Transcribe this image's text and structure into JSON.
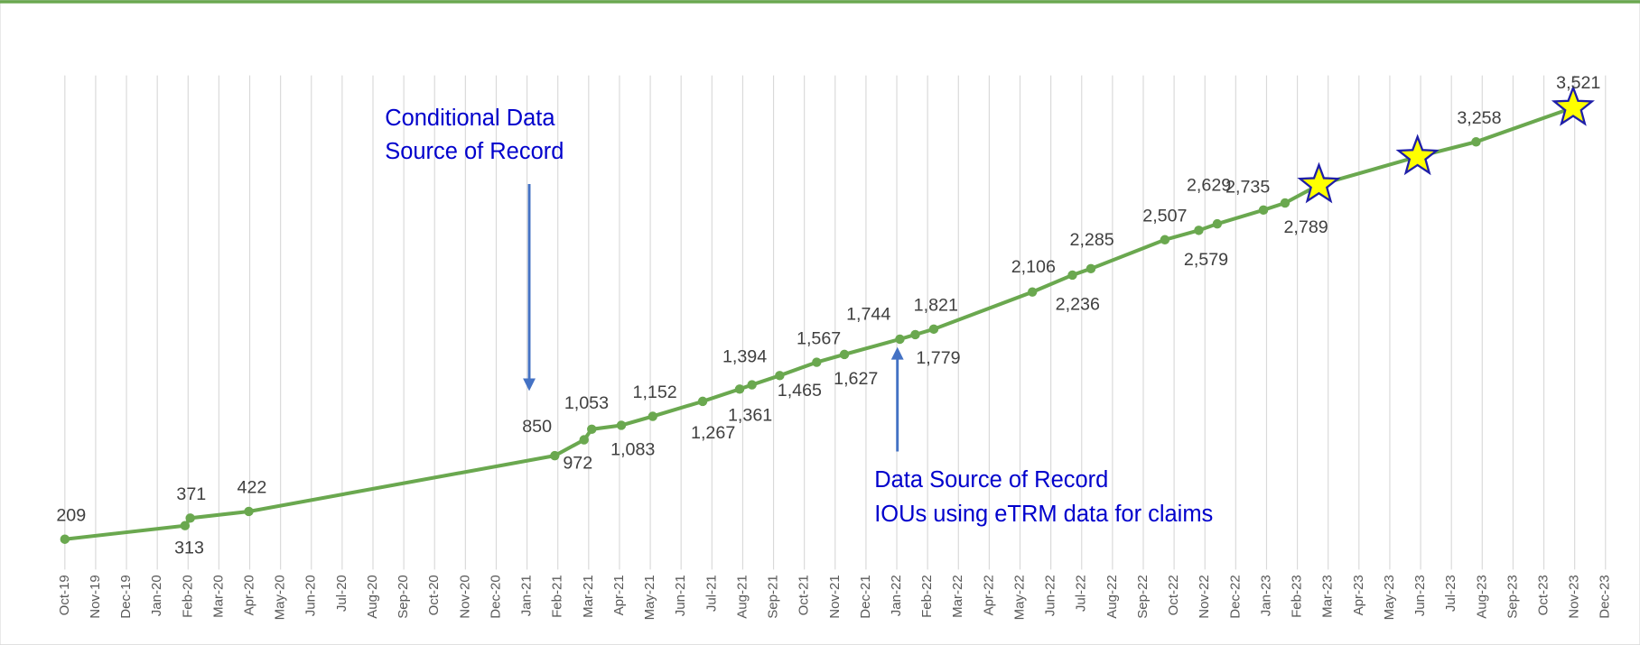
{
  "chart_data": {
    "type": "line",
    "xlim": [
      0,
      50
    ],
    "xticks": [
      {
        "value": 0,
        "label": "Oct-19"
      },
      {
        "value": 1,
        "label": "Nov-19"
      },
      {
        "value": 2,
        "label": "Dec-19"
      },
      {
        "value": 3,
        "label": "Jan-20"
      },
      {
        "value": 4,
        "label": "Feb-20"
      },
      {
        "value": 5,
        "label": "Mar-20"
      },
      {
        "value": 6,
        "label": "Apr-20"
      },
      {
        "value": 7,
        "label": "May-20"
      },
      {
        "value": 8,
        "label": "Jun-20"
      },
      {
        "value": 9,
        "label": "Jul-20"
      },
      {
        "value": 10,
        "label": "Aug-20"
      },
      {
        "value": 11,
        "label": "Sep-20"
      },
      {
        "value": 12,
        "label": "Oct-20"
      },
      {
        "value": 13,
        "label": "Nov-20"
      },
      {
        "value": 14,
        "label": "Dec-20"
      },
      {
        "value": 15,
        "label": "Jan-21"
      },
      {
        "value": 16,
        "label": "Feb-21"
      },
      {
        "value": 17,
        "label": "Mar-21"
      },
      {
        "value": 18,
        "label": "Apr-21"
      },
      {
        "value": 19,
        "label": "May-21"
      },
      {
        "value": 20,
        "label": "Jun-21"
      },
      {
        "value": 21,
        "label": "Jul-21"
      },
      {
        "value": 22,
        "label": "Aug-21"
      },
      {
        "value": 23,
        "label": "Sep-21"
      },
      {
        "value": 24,
        "label": "Oct-21"
      },
      {
        "value": 25,
        "label": "Nov-21"
      },
      {
        "value": 26,
        "label": "Dec-21"
      },
      {
        "value": 27,
        "label": "Jan-22"
      },
      {
        "value": 28,
        "label": "Feb-22"
      },
      {
        "value": 29,
        "label": "Mar-22"
      },
      {
        "value": 30,
        "label": "Apr-22"
      },
      {
        "value": 31,
        "label": "May-22"
      },
      {
        "value": 32,
        "label": "Jun-22"
      },
      {
        "value": 33,
        "label": "Jul-22"
      },
      {
        "value": 34,
        "label": "Aug-22"
      },
      {
        "value": 35,
        "label": "Sep-22"
      },
      {
        "value": 36,
        "label": "Oct-22"
      },
      {
        "value": 37,
        "label": "Nov-22"
      },
      {
        "value": 38,
        "label": "Dec-22"
      },
      {
        "value": 39,
        "label": "Jan-23"
      },
      {
        "value": 40,
        "label": "Feb-23"
      },
      {
        "value": 41,
        "label": "Mar-23"
      },
      {
        "value": 42,
        "label": "Apr-23"
      },
      {
        "value": 43,
        "label": "May-23"
      },
      {
        "value": 44,
        "label": "Jun-23"
      },
      {
        "value": 45,
        "label": "Jul-23"
      },
      {
        "value": 46,
        "label": "Aug-23"
      },
      {
        "value": 47,
        "label": "Sep-23"
      },
      {
        "value": 48,
        "label": "Oct-23"
      },
      {
        "value": 49,
        "label": "Nov-23"
      },
      {
        "value": 50,
        "label": "Dec-23"
      }
    ],
    "ylim": [
      0,
      3800
    ],
    "grid": true,
    "series": [
      {
        "color": "#6aa84f",
        "x": [
          0,
          3.9,
          4.07,
          5.97,
          15.9,
          16.85,
          17.1,
          18.06,
          19.08,
          20.7,
          21.9,
          22.3,
          23.2,
          24.4,
          25.3,
          27.1,
          27.6,
          28.2,
          31.4,
          32.7,
          33.3,
          35.7,
          36.8,
          37.4,
          38.9,
          39.6,
          40.7,
          43.9,
          45.8,
          48.95
        ],
        "values": [
          209,
          313,
          371,
          422,
          850,
          972,
          1053,
          1083,
          1152,
          1267,
          1361,
          1394,
          1465,
          1567,
          1627,
          1744,
          1779,
          1821,
          2106,
          2236,
          2285,
          2507,
          2579,
          2629,
          2735,
          2789,
          2928,
          3144,
          3258,
          3521
        ],
        "value_labels": [
          "209",
          "313",
          "371",
          "422",
          "850",
          "972",
          "1,053",
          "1,083",
          "1,152",
          "1,267",
          "1,361",
          "1,394",
          "1,465",
          "1,567",
          "1,627",
          "1,744",
          "1,779",
          "1,821",
          "2,106",
          "2,236",
          "2,285",
          "2,507",
          "2,579",
          "2,629",
          "2,735",
          "2,789",
          null,
          null,
          "3,258",
          "3,521"
        ],
        "star_points": [
          26,
          27,
          29
        ],
        "star_color": "#ffff00"
      }
    ],
    "annotations": [
      {
        "lines": [
          "Conditional Data",
          "Source of Record"
        ]
      },
      {
        "lines": [
          "Data Source of Record",
          "IOUs using eTRM data for claims"
        ]
      }
    ]
  }
}
